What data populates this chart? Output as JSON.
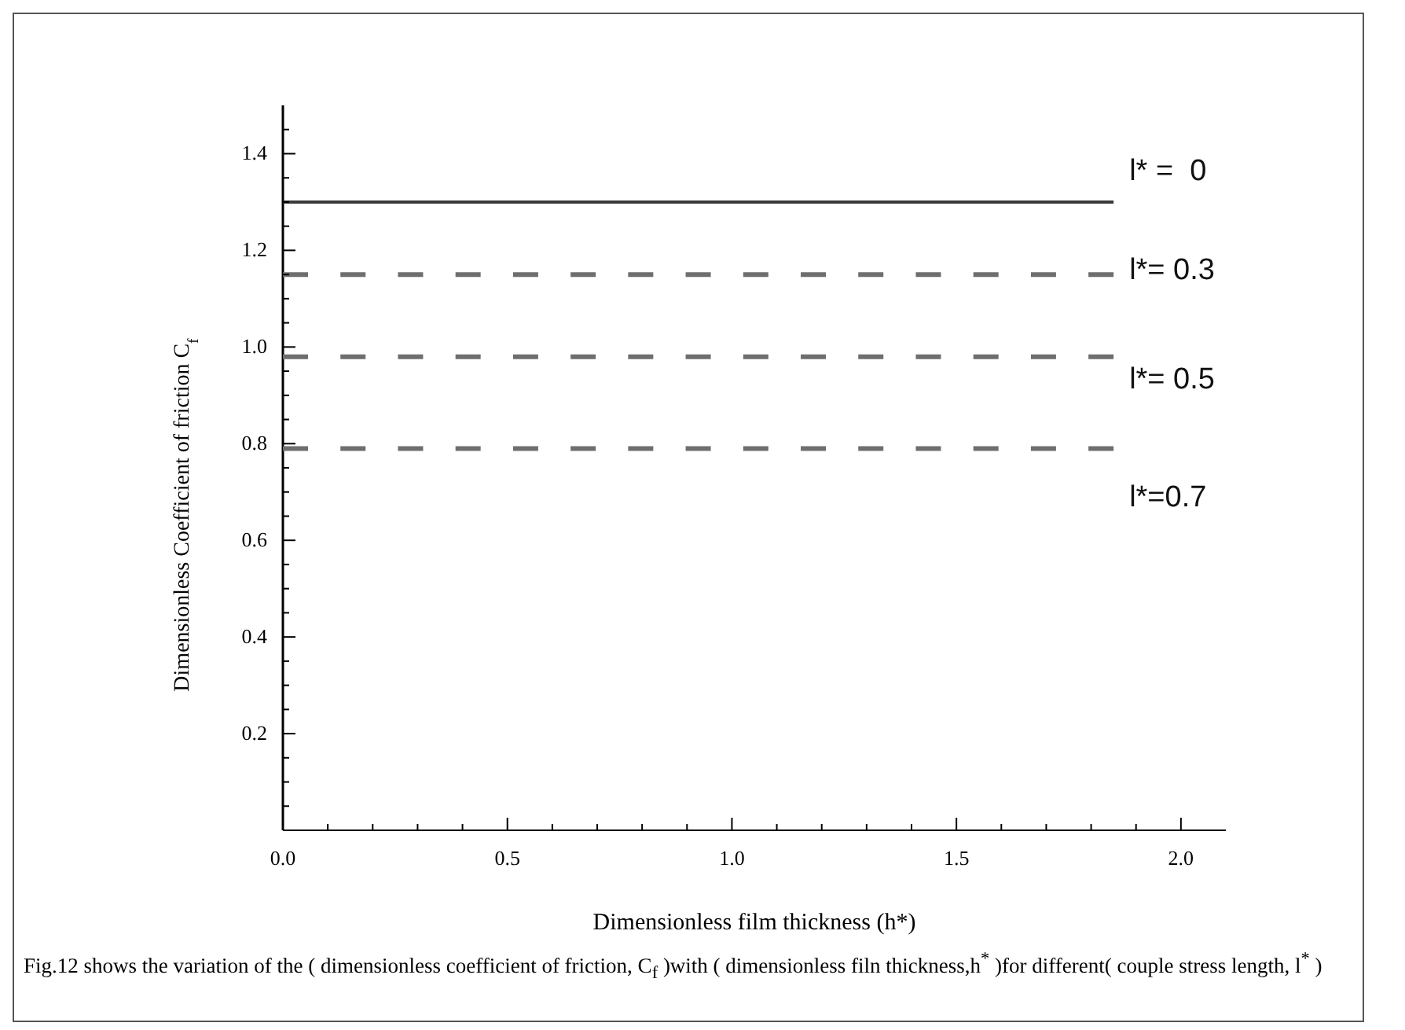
{
  "chart_data": {
    "type": "line",
    "xlabel": "Dimensionless film thickness (h*)",
    "ylabel": "Dimensionless  Coefficient of friction C$_{f}$",
    "annotations": [
      "Fig.12 shows the variation of the ( dimensionless coefficient of friction, C$_{f}$ )with ( dimensionless filn thickness,h$^{*}$ )for different( couple  stress length, l$^{*}$ )"
    ],
    "series": [
      {
        "name": "l* =  0",
        "color": "#3a3a3a",
        "line_style": "solid",
        "values": [
          1.3,
          1.3
        ]
      },
      {
        "name": "l*= 0.3",
        "color": "#6e6e6e",
        "line_style": "dashed",
        "values": [
          1.15,
          1.15
        ]
      },
      {
        "name": "l*= 0.5",
        "color": "#6e6e6e",
        "line_style": "dashed",
        "values": [
          0.98,
          0.98
        ]
      },
      {
        "name": "l*=0.7",
        "color": "#6e6e6e",
        "line_style": "dashed",
        "values": [
          0.79,
          0.79
        ]
      }
    ],
    "x": [
      0,
      1.85
    ],
    "xlim": [
      0,
      2.1
    ],
    "ylim": [
      0,
      1.5
    ],
    "xticks": [
      {
        "value": 0,
        "label": "0.0"
      },
      {
        "value": 0.1,
        "label": null
      },
      {
        "value": 0.2,
        "label": null
      },
      {
        "value": 0.3,
        "label": null
      },
      {
        "value": 0.4,
        "label": null
      },
      0.5,
      {
        "value": 0.6,
        "label": null
      },
      {
        "value": 0.7,
        "label": null
      },
      {
        "value": 0.8,
        "label": null
      },
      {
        "value": 0.9,
        "label": null
      },
      {
        "value": 1,
        "label": "1.0"
      },
      {
        "value": 1.1,
        "label": null
      },
      {
        "value": 1.2,
        "label": null
      },
      {
        "value": 1.3,
        "label": null
      },
      {
        "value": 1.4,
        "label": null
      },
      1.5,
      {
        "value": 1.6,
        "label": null
      },
      {
        "value": 1.7,
        "label": null
      },
      {
        "value": 1.8,
        "label": null
      },
      {
        "value": 1.9,
        "label": null
      },
      {
        "value": 2,
        "label": "2.0"
      }
    ],
    "yticks": [
      {
        "value": 0.05,
        "label": null
      },
      {
        "value": 0.1,
        "label": null
      },
      {
        "value": 0.15,
        "label": null
      },
      0.2,
      {
        "value": 0.25,
        "label": null
      },
      {
        "value": 0.3,
        "label": null
      },
      {
        "value": 0.35,
        "label": null
      },
      0.4,
      {
        "value": 0.45,
        "label": null
      },
      {
        "value": 0.5,
        "label": null
      },
      {
        "value": 0.55,
        "label": null
      },
      0.6,
      {
        "value": 0.65,
        "label": null
      },
      {
        "value": 0.7,
        "label": null
      },
      {
        "value": 0.75,
        "label": null
      },
      0.8,
      {
        "value": 0.85,
        "label": null
      },
      {
        "value": 0.9,
        "label": null
      },
      {
        "value": 0.95,
        "label": null
      },
      {
        "value": 1,
        "label": "1.0"
      },
      {
        "value": 1.05,
        "label": null
      },
      {
        "value": 1.1,
        "label": null
      },
      {
        "value": 1.15,
        "label": null
      },
      1.2,
      {
        "value": 1.25,
        "label": null
      },
      {
        "value": 1.3,
        "label": null
      },
      {
        "value": 1.35,
        "label": null
      },
      1.4,
      {
        "value": 1.45,
        "label": null
      }
    ],
    "grid": false,
    "legend": false
  }
}
